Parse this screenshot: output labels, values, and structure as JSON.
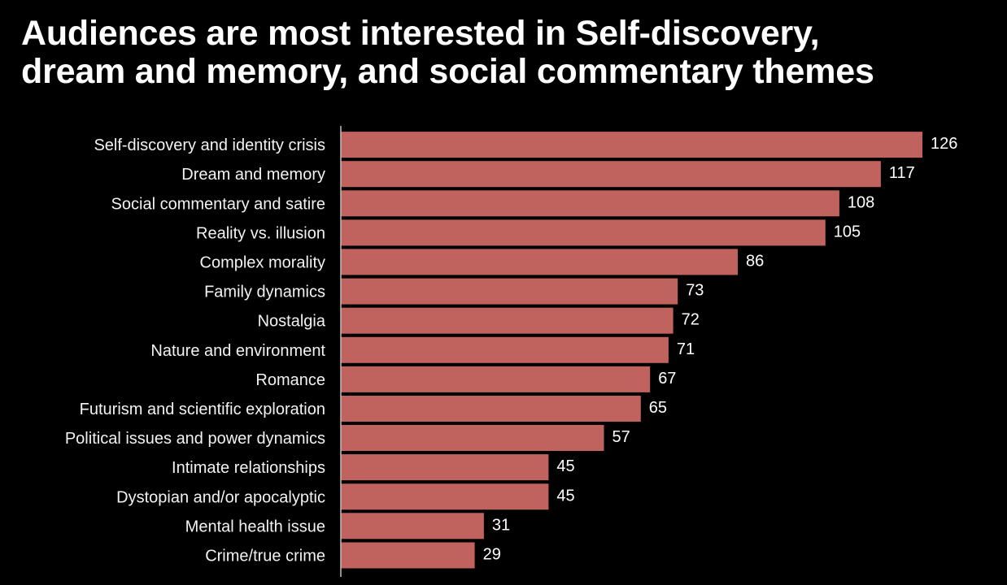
{
  "title": {
    "line1": "Audiences are most interested in Self-discovery,",
    "line2": "dream and memory, and social commentary themes"
  },
  "colors": {
    "background": "#000000",
    "bar": "#c0625d",
    "text": "#ffffff",
    "axis": "#bfbfbf"
  },
  "chart_data": {
    "type": "bar",
    "orientation": "horizontal",
    "title": "Audiences are most interested in Self-discovery, dream and memory, and social commentary themes",
    "xlabel": "",
    "ylabel": "",
    "xlim": [
      0,
      126
    ],
    "grid": false,
    "legend": "none",
    "data_labels": true,
    "categories": [
      "Self-discovery and identity crisis",
      "Dream and memory",
      "Social commentary and satire",
      "Reality vs. illusion",
      "Complex morality",
      "Family dynamics",
      "Nostalgia",
      "Nature and environment",
      "Romance",
      "Futurism and scientific exploration",
      "Political issues and power dynamics",
      "Intimate relationships",
      "Dystopian and/or apocalyptic",
      "Mental health issue",
      "Crime/true crime"
    ],
    "values": [
      126,
      117,
      108,
      105,
      86,
      73,
      72,
      71,
      67,
      65,
      57,
      45,
      45,
      31,
      29
    ]
  }
}
